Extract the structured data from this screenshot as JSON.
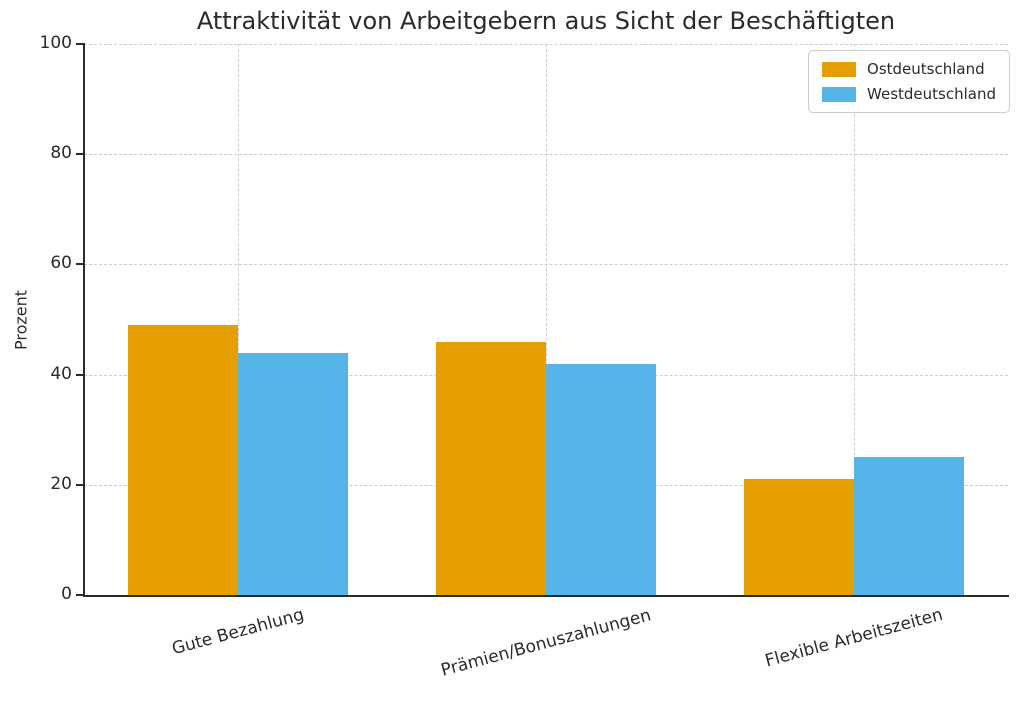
{
  "chart_data": {
    "type": "bar",
    "title": "Attraktivität von Arbeitgebern aus Sicht der Beschäftigten",
    "xlabel": "",
    "ylabel": "Prozent",
    "ylim": [
      0,
      100
    ],
    "yticks": [
      0,
      20,
      40,
      60,
      80,
      100
    ],
    "grid": "dashed, both axes, light gray",
    "legend_position": "upper right",
    "x_tick_rotation_deg": 15,
    "categories": [
      "Gute Bezahlung",
      "Prämien/Bonuszahlungen",
      "Flexible Arbeitszeiten"
    ],
    "series": [
      {
        "name": "Ostdeutschland",
        "color": "#E69F00",
        "values": [
          49,
          46,
          21
        ]
      },
      {
        "name": "Westdeutschland",
        "color": "#56B4E9",
        "values": [
          44,
          42,
          25
        ]
      }
    ],
    "colors": {
      "text": "#2b2b2b",
      "spine": "#2b2b2b",
      "gridline": "#cccccc",
      "background": "#ffffff"
    }
  }
}
